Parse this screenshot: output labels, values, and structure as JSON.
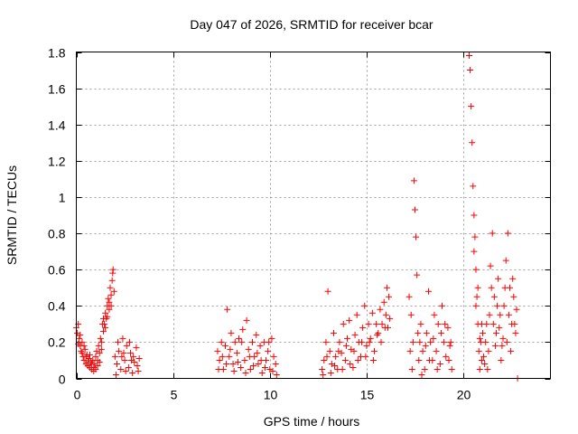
{
  "chart_data": {
    "type": "scatter",
    "title": "Day 047 of 2026, SRMTID for receiver bcar",
    "xlabel": "GPS time / hours",
    "ylabel": "SRMTID / TECUs",
    "xlim": [
      0,
      24.5
    ],
    "ylim": [
      0,
      1.8
    ],
    "xticks": [
      0,
      5,
      10,
      15,
      20
    ],
    "yticks": [
      0,
      0.2,
      0.4,
      0.6,
      0.8,
      1,
      1.2,
      1.4,
      1.6,
      1.8
    ],
    "xtick_labels": [
      "0",
      "5",
      "10",
      "15",
      "20"
    ],
    "ytick_labels": [
      "0",
      "0.2",
      "0.4",
      "0.6",
      "0.8",
      "1",
      "1.2",
      "1.4",
      "1.6",
      "1.8"
    ],
    "grid": true,
    "marker": "+",
    "color": "#ff0000",
    "series": [
      {
        "name": "SRMTID",
        "points": [
          [
            0.0,
            0.28
          ],
          [
            0.05,
            0.25
          ],
          [
            0.1,
            0.3
          ],
          [
            0.15,
            0.22
          ],
          [
            0.2,
            0.18
          ],
          [
            0.25,
            0.15
          ],
          [
            0.3,
            0.2
          ],
          [
            0.35,
            0.12
          ],
          [
            0.4,
            0.1
          ],
          [
            0.45,
            0.16
          ],
          [
            0.5,
            0.08
          ],
          [
            0.55,
            0.13
          ],
          [
            0.6,
            0.07
          ],
          [
            0.65,
            0.11
          ],
          [
            0.7,
            0.06
          ],
          [
            0.75,
            0.09
          ],
          [
            0.8,
            0.05
          ],
          [
            0.85,
            0.1
          ],
          [
            0.9,
            0.04
          ],
          [
            0.95,
            0.08
          ],
          [
            1.0,
            0.12
          ],
          [
            1.05,
            0.15
          ],
          [
            1.1,
            0.1
          ],
          [
            1.15,
            0.18
          ],
          [
            1.2,
            0.14
          ],
          [
            1.25,
            0.22
          ],
          [
            1.3,
            0.2
          ],
          [
            1.35,
            0.3
          ],
          [
            1.4,
            0.33
          ],
          [
            1.45,
            0.3
          ],
          [
            1.5,
            0.36
          ],
          [
            1.55,
            0.33
          ],
          [
            1.6,
            0.4
          ],
          [
            1.65,
            0.44
          ],
          [
            1.7,
            0.42
          ],
          [
            1.75,
            0.5
          ],
          [
            1.8,
            0.46
          ],
          [
            1.85,
            0.54
          ],
          [
            1.88,
            0.58
          ],
          [
            1.9,
            0.6
          ],
          [
            1.95,
            0.48
          ],
          [
            0.1,
            0.19
          ],
          [
            0.2,
            0.24
          ],
          [
            0.3,
            0.14
          ],
          [
            0.4,
            0.18
          ],
          [
            0.5,
            0.12
          ],
          [
            0.6,
            0.09
          ],
          [
            0.7,
            0.13
          ],
          [
            0.8,
            0.08
          ],
          [
            0.9,
            0.06
          ],
          [
            1.0,
            0.05
          ],
          [
            1.1,
            0.07
          ],
          [
            1.2,
            0.09
          ],
          [
            1.3,
            0.16
          ],
          [
            1.4,
            0.26
          ],
          [
            1.5,
            0.28
          ],
          [
            1.6,
            0.34
          ],
          [
            1.7,
            0.38
          ],
          [
            1.8,
            0.4
          ],
          [
            2.0,
            0.12
          ],
          [
            2.1,
            0.08
          ],
          [
            2.2,
            0.15
          ],
          [
            2.3,
            0.05
          ],
          [
            2.4,
            0.22
          ],
          [
            2.5,
            0.1
          ],
          [
            2.6,
            0.18
          ],
          [
            2.7,
            0.06
          ],
          [
            2.8,
            0.14
          ],
          [
            2.9,
            0.03
          ],
          [
            3.0,
            0.09
          ],
          [
            3.1,
            0.17
          ],
          [
            3.2,
            0.04
          ],
          [
            3.25,
            0.11
          ],
          [
            2.15,
            0.2
          ],
          [
            2.35,
            0.12
          ],
          [
            2.55,
            0.04
          ],
          [
            2.75,
            0.2
          ],
          [
            2.95,
            0.12
          ],
          [
            3.15,
            0.07
          ],
          [
            2.05,
            0.02
          ],
          [
            2.45,
            0.14
          ],
          [
            2.85,
            0.1
          ],
          [
            7.3,
            0.15
          ],
          [
            7.4,
            0.1
          ],
          [
            7.5,
            0.2
          ],
          [
            7.6,
            0.05
          ],
          [
            7.7,
            0.18
          ],
          [
            7.8,
            0.38
          ],
          [
            7.9,
            0.12
          ],
          [
            8.0,
            0.25
          ],
          [
            8.1,
            0.08
          ],
          [
            8.2,
            0.2
          ],
          [
            8.3,
            0.14
          ],
          [
            8.4,
            0.22
          ],
          [
            8.5,
            0.06
          ],
          [
            8.6,
            0.27
          ],
          [
            8.7,
            0.1
          ],
          [
            8.8,
            0.32
          ],
          [
            8.9,
            0.16
          ],
          [
            9.0,
            0.05
          ],
          [
            9.1,
            0.2
          ],
          [
            9.2,
            0.12
          ],
          [
            9.3,
            0.24
          ],
          [
            9.4,
            0.08
          ],
          [
            9.5,
            0.18
          ],
          [
            9.6,
            0.03
          ],
          [
            9.7,
            0.2
          ],
          [
            9.8,
            0.1
          ],
          [
            9.9,
            0.15
          ],
          [
            10.0,
            0.05
          ],
          [
            10.1,
            0.22
          ],
          [
            10.2,
            0.12
          ],
          [
            10.3,
            0.08
          ],
          [
            10.35,
            0.02
          ],
          [
            7.35,
            0.05
          ],
          [
            7.55,
            0.12
          ],
          [
            7.75,
            0.08
          ],
          [
            7.95,
            0.16
          ],
          [
            8.15,
            0.04
          ],
          [
            8.35,
            0.09
          ],
          [
            8.55,
            0.2
          ],
          [
            8.75,
            0.03
          ],
          [
            8.95,
            0.12
          ],
          [
            9.15,
            0.07
          ],
          [
            9.35,
            0.14
          ],
          [
            9.55,
            0.1
          ],
          [
            9.75,
            0.06
          ],
          [
            9.95,
            0.2
          ],
          [
            10.15,
            0.04
          ],
          [
            12.7,
            0.05
          ],
          [
            12.8,
            0.1
          ],
          [
            12.9,
            0.2
          ],
          [
            13.0,
            0.48
          ],
          [
            13.1,
            0.15
          ],
          [
            13.2,
            0.08
          ],
          [
            13.3,
            0.25
          ],
          [
            13.4,
            0.12
          ],
          [
            13.5,
            0.05
          ],
          [
            13.6,
            0.2
          ],
          [
            13.7,
            0.14
          ],
          [
            13.8,
            0.3
          ],
          [
            13.9,
            0.1
          ],
          [
            14.0,
            0.22
          ],
          [
            14.1,
            0.32
          ],
          [
            14.2,
            0.16
          ],
          [
            14.3,
            0.06
          ],
          [
            14.4,
            0.24
          ],
          [
            14.5,
            0.35
          ],
          [
            14.6,
            0.2
          ],
          [
            14.7,
            0.12
          ],
          [
            14.8,
            0.28
          ],
          [
            14.9,
            0.4
          ],
          [
            15.0,
            0.18
          ],
          [
            15.1,
            0.3
          ],
          [
            15.2,
            0.22
          ],
          [
            15.3,
            0.36
          ],
          [
            15.4,
            0.15
          ],
          [
            15.5,
            0.3
          ],
          [
            15.6,
            0.25
          ],
          [
            15.7,
            0.38
          ],
          [
            15.8,
            0.3
          ],
          [
            15.9,
            0.42
          ],
          [
            16.0,
            0.35
          ],
          [
            16.05,
            0.5
          ],
          [
            16.1,
            0.28
          ],
          [
            16.15,
            0.45
          ],
          [
            16.2,
            0.33
          ],
          [
            12.75,
            0.02
          ],
          [
            12.95,
            0.12
          ],
          [
            13.15,
            0.03
          ],
          [
            13.35,
            0.07
          ],
          [
            13.55,
            0.15
          ],
          [
            13.75,
            0.05
          ],
          [
            13.95,
            0.18
          ],
          [
            14.15,
            0.08
          ],
          [
            14.35,
            0.15
          ],
          [
            14.55,
            0.1
          ],
          [
            14.75,
            0.2
          ],
          [
            14.95,
            0.12
          ],
          [
            15.15,
            0.2
          ],
          [
            15.35,
            0.1
          ],
          [
            15.55,
            0.24
          ],
          [
            15.75,
            0.2
          ],
          [
            15.95,
            0.28
          ],
          [
            17.2,
            0.45
          ],
          [
            17.3,
            0.35
          ],
          [
            17.4,
            0.2
          ],
          [
            17.45,
            1.09
          ],
          [
            17.5,
            0.93
          ],
          [
            17.55,
            0.78
          ],
          [
            17.6,
            0.57
          ],
          [
            17.65,
            0.25
          ],
          [
            17.7,
            0.1
          ],
          [
            17.8,
            0.3
          ],
          [
            17.9,
            0.15
          ],
          [
            18.0,
            0.05
          ],
          [
            18.1,
            0.25
          ],
          [
            18.2,
            0.48
          ],
          [
            18.3,
            0.2
          ],
          [
            18.4,
            0.1
          ],
          [
            18.5,
            0.35
          ],
          [
            18.6,
            0.15
          ],
          [
            18.7,
            0.3
          ],
          [
            18.8,
            0.08
          ],
          [
            18.9,
            0.4
          ],
          [
            19.0,
            0.2
          ],
          [
            19.1,
            0.12
          ],
          [
            19.2,
            0.28
          ],
          [
            19.3,
            0.18
          ],
          [
            19.4,
            0.05
          ],
          [
            17.25,
            0.15
          ],
          [
            17.35,
            0.05
          ],
          [
            17.75,
            0.2
          ],
          [
            17.85,
            0.02
          ],
          [
            18.05,
            0.18
          ],
          [
            18.25,
            0.1
          ],
          [
            18.45,
            0.22
          ],
          [
            18.65,
            0.05
          ],
          [
            18.85,
            0.25
          ],
          [
            19.05,
            0.3
          ],
          [
            19.25,
            0.1
          ],
          [
            19.35,
            0.2
          ],
          [
            20.3,
            1.78
          ],
          [
            20.35,
            1.7
          ],
          [
            20.4,
            1.5
          ],
          [
            20.45,
            1.3
          ],
          [
            20.5,
            1.06
          ],
          [
            20.55,
            0.9
          ],
          [
            20.6,
            0.78
          ],
          [
            20.65,
            0.6
          ],
          [
            20.7,
            0.45
          ],
          [
            20.75,
            0.3
          ],
          [
            20.8,
            0.15
          ],
          [
            20.85,
            0.05
          ],
          [
            20.9,
            0.2
          ],
          [
            20.95,
            0.1
          ],
          [
            21.0,
            0.25
          ],
          [
            21.1,
            0.08
          ],
          [
            21.2,
            0.3
          ],
          [
            21.3,
            0.15
          ],
          [
            21.4,
            0.62
          ],
          [
            21.5,
            0.8
          ],
          [
            21.6,
            0.45
          ],
          [
            21.7,
            0.25
          ],
          [
            21.8,
            0.55
          ],
          [
            21.9,
            0.35
          ],
          [
            22.0,
            0.18
          ],
          [
            22.1,
            0.4
          ],
          [
            22.2,
            0.65
          ],
          [
            22.3,
            0.8
          ],
          [
            22.4,
            0.5
          ],
          [
            22.5,
            0.3
          ],
          [
            22.6,
            0.45
          ],
          [
            22.7,
            0.25
          ],
          [
            22.75,
            0.38
          ],
          [
            22.8,
            0.0
          ],
          [
            20.55,
            0.7
          ],
          [
            20.65,
            0.4
          ],
          [
            20.75,
            0.5
          ],
          [
            20.85,
            0.22
          ],
          [
            20.95,
            0.3
          ],
          [
            21.05,
            0.12
          ],
          [
            21.15,
            0.2
          ],
          [
            21.25,
            0.05
          ],
          [
            21.35,
            0.35
          ],
          [
            21.45,
            0.5
          ],
          [
            21.55,
            0.3
          ],
          [
            21.65,
            0.18
          ],
          [
            21.75,
            0.4
          ],
          [
            21.85,
            0.28
          ],
          [
            21.95,
            0.1
          ],
          [
            22.05,
            0.22
          ],
          [
            22.15,
            0.5
          ],
          [
            22.25,
            0.2
          ],
          [
            22.35,
            0.35
          ],
          [
            22.45,
            0.15
          ],
          [
            22.55,
            0.55
          ],
          [
            22.65,
            0.3
          ]
        ]
      }
    ]
  }
}
